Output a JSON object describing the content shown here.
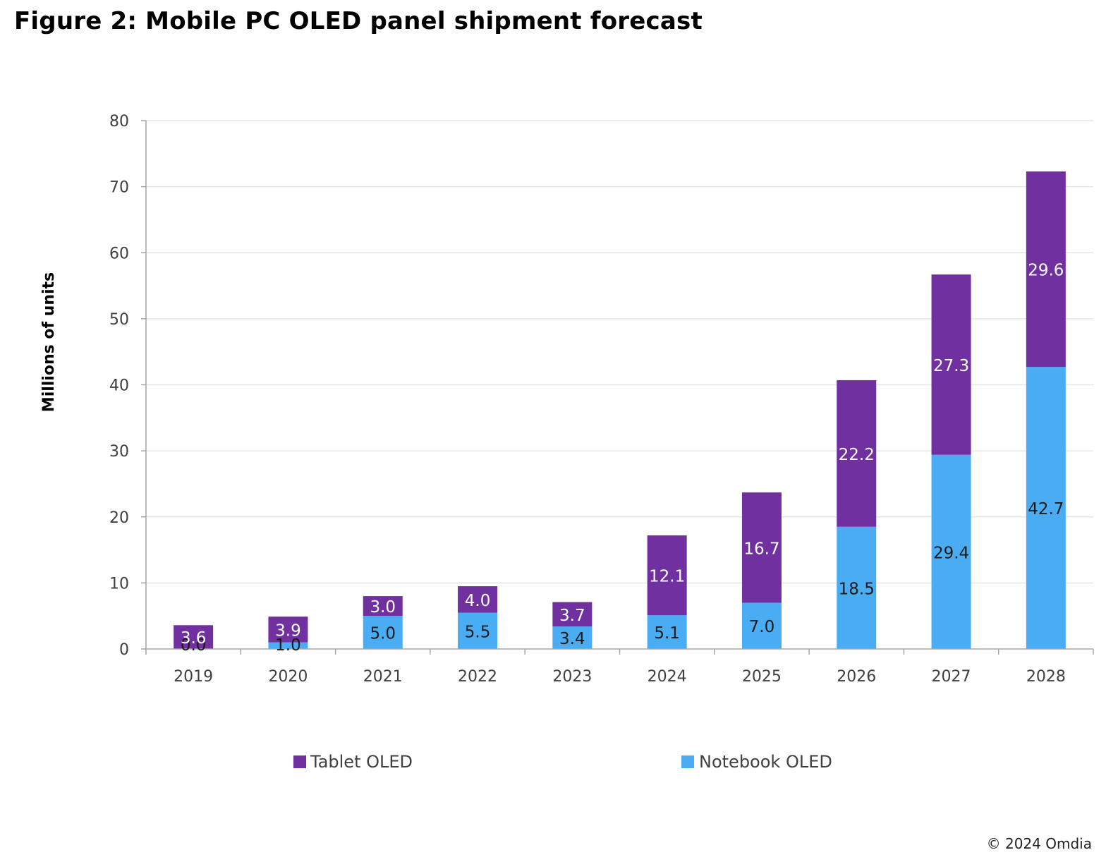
{
  "figure_title": "Figure 2: Mobile PC OLED panel shipment forecast",
  "credit": "© 2024 Omdia",
  "colors": {
    "tablet": "#7030a0",
    "notebook": "#4aadf3",
    "grid": "#e6e6e6",
    "axis": "#a6a6a6"
  },
  "chart_data": {
    "type": "bar",
    "stacked": true,
    "title": "Figure 2: Mobile PC OLED panel shipment forecast",
    "xlabel": "",
    "ylabel": "Millions of units",
    "ylim": [
      0,
      80
    ],
    "yticks": [
      0,
      10,
      20,
      30,
      40,
      50,
      60,
      70,
      80
    ],
    "grid": true,
    "legend_position": "bottom",
    "categories": [
      "2019",
      "2020",
      "2021",
      "2022",
      "2023",
      "2024",
      "2025",
      "2026",
      "2027",
      "2028"
    ],
    "series": [
      {
        "name": "Notebook OLED",
        "color": "#4aadf3",
        "values": [
          0.0,
          1.0,
          5.0,
          5.5,
          3.4,
          5.1,
          7.0,
          18.5,
          29.4,
          42.7
        ],
        "labels": [
          "0.0",
          "1.0",
          "5.0",
          "5.5",
          "3.4",
          "5.1",
          "7.0",
          "18.5",
          "29.4",
          "42.7"
        ]
      },
      {
        "name": "Tablet OLED",
        "color": "#7030a0",
        "values": [
          3.6,
          3.9,
          3.0,
          4.0,
          3.7,
          12.1,
          16.7,
          22.2,
          27.3,
          29.6
        ],
        "labels": [
          "3.6",
          "3.9",
          "3.0",
          "4.0",
          "3.7",
          "12.1",
          "16.7",
          "22.2",
          "27.3",
          "29.6"
        ]
      }
    ],
    "legend": [
      "Tablet OLED",
      "Notebook OLED"
    ]
  }
}
